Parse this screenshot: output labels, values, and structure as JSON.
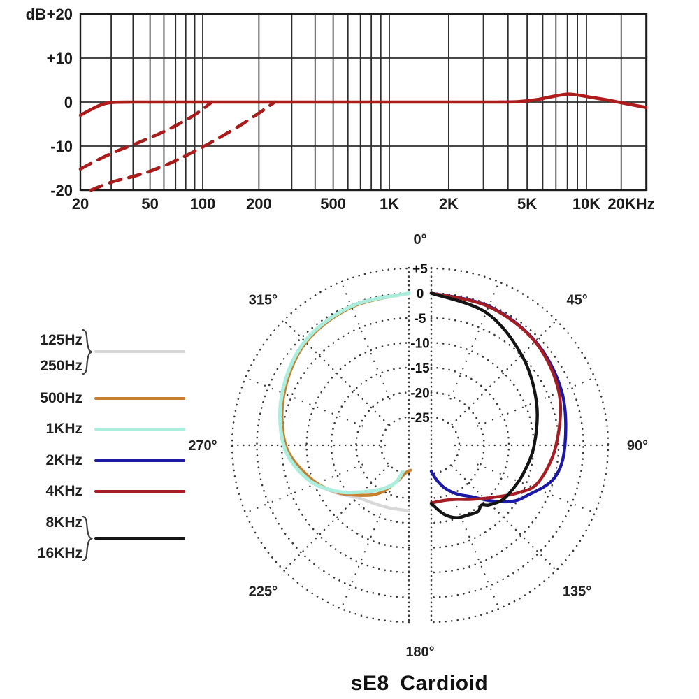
{
  "polar_title_note": "title shown under polar chart",
  "legend": {
    "items": [
      {
        "labels": [
          "125Hz",
          "250Hz"
        ],
        "color": "#d8d8d8",
        "braced": true
      },
      {
        "labels": [
          "500Hz"
        ],
        "color": "#c6802f",
        "braced": false
      },
      {
        "labels": [
          "1KHz"
        ],
        "color": "#aceede",
        "braced": false
      },
      {
        "labels": [
          "2KHz"
        ],
        "color": "#1c1aa5",
        "braced": false
      },
      {
        "labels": [
          "4KHz"
        ],
        "color": "#a51e24",
        "braced": false
      },
      {
        "labels": [
          "8KHz",
          "16KHz"
        ],
        "color": "#141414",
        "braced": true
      }
    ]
  },
  "chart_data": [
    {
      "type": "line",
      "name": "frequency-response",
      "x_axis": {
        "scale": "log",
        "range_hz": [
          20,
          20000
        ],
        "tick_freqs": [
          20,
          50,
          100,
          200,
          500,
          1000,
          2000,
          5000,
          10000,
          20000
        ],
        "tick_labels": [
          "20",
          "50",
          "100",
          "200",
          "500",
          "1K",
          "2K",
          "5K",
          "10K",
          "20KHz"
        ],
        "gridline_freqs": [
          20,
          30,
          40,
          50,
          60,
          70,
          80,
          90,
          100,
          200,
          300,
          400,
          500,
          600,
          700,
          800,
          900,
          1000,
          2000,
          3000,
          4000,
          5000,
          6000,
          7000,
          8000,
          9000,
          10000,
          15000,
          20000
        ]
      },
      "y_axis": {
        "label": "dB",
        "range_db": [
          -20,
          20
        ],
        "tick_values": [
          20,
          10,
          0,
          -10,
          -20
        ],
        "tick_labels": [
          "+20",
          "+10",
          "0",
          "-10",
          "-20"
        ],
        "grid": true
      },
      "series": [
        {
          "name": "on-axis-response",
          "style": "solid",
          "color": "#ad1b1b",
          "points_hz_db": [
            [
              20,
              -3
            ],
            [
              23,
              -1.7
            ],
            [
              26,
              -0.7
            ],
            [
              30,
              -0.1
            ],
            [
              40,
              0
            ],
            [
              60,
              0
            ],
            [
              100,
              0
            ],
            [
              200,
              0
            ],
            [
              400,
              0
            ],
            [
              800,
              0
            ],
            [
              1500,
              0
            ],
            [
              2500,
              0
            ],
            [
              3500,
              0
            ],
            [
              4500,
              0.1
            ],
            [
              5500,
              0.5
            ],
            [
              6800,
              1.3
            ],
            [
              8000,
              1.8
            ],
            [
              9000,
              1.6
            ],
            [
              10500,
              1.1
            ],
            [
              13000,
              0.4
            ],
            [
              16000,
              -0.4
            ],
            [
              20000,
              -1.2
            ]
          ]
        },
        {
          "name": "low-cut-dashed-1",
          "style": "dashed",
          "color": "#a81c1c",
          "points_hz_db": [
            [
              20,
              -15.2
            ],
            [
              25,
              -13.2
            ],
            [
              32,
              -11.2
            ],
            [
              40,
              -9.7
            ],
            [
              50,
              -8.1
            ],
            [
              63,
              -6.3
            ],
            [
              80,
              -4.1
            ],
            [
              90,
              -2.9
            ],
            [
              100,
              -1.6
            ],
            [
              112,
              0
            ]
          ]
        },
        {
          "name": "low-cut-dashed-2",
          "style": "dashed",
          "color": "#a81c1c",
          "points_hz_db": [
            [
              23,
              -20
            ],
            [
              30,
              -18.2
            ],
            [
              40,
              -16.9
            ],
            [
              50,
              -15.7
            ],
            [
              65,
              -13.9
            ],
            [
              80,
              -12.2
            ],
            [
              100,
              -10.2
            ],
            [
              125,
              -7.9
            ],
            [
              160,
              -5.2
            ],
            [
              200,
              -2.5
            ],
            [
              225,
              -1.0
            ],
            [
              243,
              0
            ]
          ]
        }
      ]
    },
    {
      "type": "polar",
      "name": "polar-pattern",
      "title": "sE8 Cardioid",
      "angle_labels": [
        "0°",
        "45°",
        "90°",
        "135°",
        "180°",
        "225°",
        "270°",
        "315°"
      ],
      "angles_deg": [
        0,
        45,
        90,
        135,
        180,
        225,
        270,
        315
      ],
      "radial_ticks": {
        "labels": [
          "+5",
          "0",
          "-5",
          "-10",
          "-15",
          "-20",
          "-25"
        ],
        "values": [
          5,
          0,
          -5,
          -10,
          -15,
          -20,
          -25
        ]
      },
      "series": [
        {
          "name": "125Hz/250Hz",
          "color": "#d8d8d8",
          "side": "left",
          "width": 4.4,
          "points_deg_db": [
            [
              360,
              0
            ],
            [
              337.5,
              -0.4
            ],
            [
              315,
              -1.2
            ],
            [
              292.5,
              -3.2
            ],
            [
              270,
              -5.6
            ],
            [
              252,
              -9.3
            ],
            [
              238,
              -12.8
            ],
            [
              225,
              -15.8
            ],
            [
              212,
              -16.9
            ],
            [
              198,
              -17.4
            ],
            [
              180,
              -17.4
            ]
          ]
        },
        {
          "name": "500Hz",
          "color": "#c6802f",
          "side": "left",
          "width": 4.4,
          "points_deg_db": [
            [
              360,
              0
            ],
            [
              337.5,
              -0.5
            ],
            [
              315,
              -1.3
            ],
            [
              292.5,
              -3.4
            ],
            [
              270,
              -5.8
            ],
            [
              252,
              -9.6
            ],
            [
              238,
              -13.0
            ],
            [
              225,
              -16.4
            ],
            [
              212,
              -19.2
            ],
            [
              199,
              -22.8
            ],
            [
              188,
              -24.9
            ],
            [
              176.5,
              -25.6
            ]
          ]
        },
        {
          "name": "1KHz",
          "color": "#aceede",
          "side": "left",
          "width": 5.2,
          "points_deg_db": [
            [
              360,
              0
            ],
            [
              337.5,
              -0.3
            ],
            [
              315,
              -1.0
            ],
            [
              292.5,
              -3.0
            ],
            [
              270,
              -5.4
            ],
            [
              252,
              -9.0
            ],
            [
              238,
              -13.2
            ],
            [
              225,
              -17.3
            ],
            [
              212,
              -20.2
            ],
            [
              200,
              -22.6
            ],
            [
              193,
              -25.2
            ]
          ]
        },
        {
          "name": "2KHz",
          "color": "#1c1aa5",
          "side": "right",
          "width": 4.4,
          "points_deg_db": [
            [
              0,
              0
            ],
            [
              22.5,
              -0.3
            ],
            [
              45,
              -1.0
            ],
            [
              67.5,
              -2.2
            ],
            [
              90,
              -3.7
            ],
            [
              105,
              -5.0
            ],
            [
              118,
              -8.9
            ],
            [
              125,
              -10.9
            ],
            [
              133,
              -14.2
            ],
            [
              141,
              -17.2
            ],
            [
              152,
              -19.5
            ],
            [
              162,
              -21.5
            ],
            [
              171,
              -23.5
            ],
            [
              180,
              -25.4
            ]
          ]
        },
        {
          "name": "4KHz",
          "color": "#a51e24",
          "side": "right",
          "width": 4.4,
          "points_deg_db": [
            [
              0,
              0
            ],
            [
              22.5,
              -0.4
            ],
            [
              45,
              -1.1
            ],
            [
              67.5,
              -2.8
            ],
            [
              90,
              -5.5
            ],
            [
              109,
              -7.8
            ],
            [
              119,
              -10.8
            ],
            [
              132,
              -14.8
            ],
            [
              145,
              -17.3
            ],
            [
              155,
              -18.6
            ],
            [
              166,
              -19.2
            ],
            [
              180,
              -19.0
            ]
          ]
        },
        {
          "name": "8KHz/16KHz",
          "color": "#141414",
          "side": "right",
          "width": 4.4,
          "points_deg_db": [
            [
              0,
              0
            ],
            [
              22.5,
              -1.7
            ],
            [
              45,
              -4.9
            ],
            [
              67.5,
              -7.7
            ],
            [
              90,
              -9.9
            ],
            [
              108,
              -11.3
            ],
            [
              120,
              -12.1
            ],
            [
              128,
              -12.6
            ],
            [
              136,
              -13.9
            ],
            [
              140,
              -14.9
            ],
            [
              145,
              -14.3
            ],
            [
              153,
              -14.8
            ],
            [
              161,
              -15.2
            ],
            [
              170,
              -16.6
            ],
            [
              180,
              -18.9
            ]
          ]
        }
      ]
    }
  ]
}
